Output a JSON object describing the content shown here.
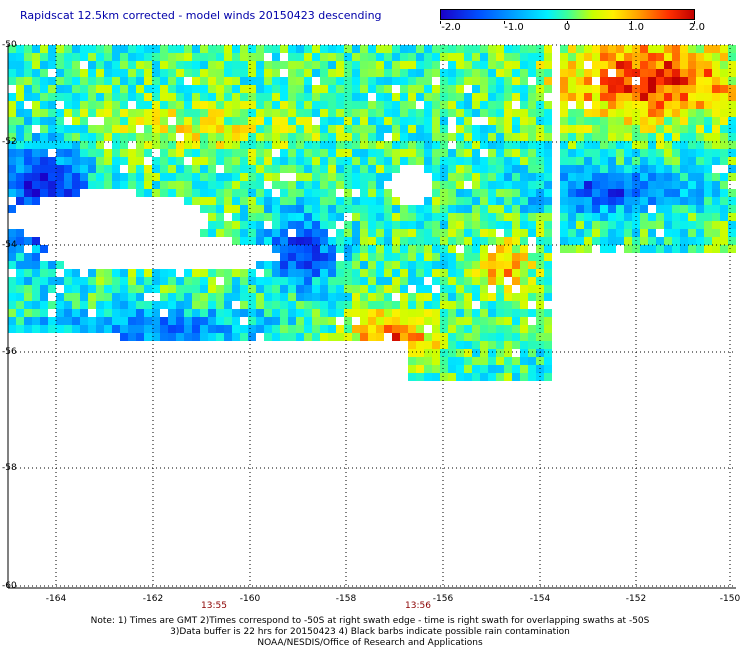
{
  "title": "Rapidscat 12.5km corrected - model winds 20150423 descending",
  "colorbar": {
    "ticks": [
      {
        "value": "-2.0",
        "t": 0.0
      },
      {
        "value": "-1.0",
        "t": 0.25
      },
      {
        "value": "0",
        "t": 0.5
      },
      {
        "value": "1.0",
        "t": 0.75
      },
      {
        "value": "2.0",
        "t": 1.0
      }
    ]
  },
  "map": {
    "latitudes": [
      "-50",
      "-52",
      "-54",
      "-56",
      "-58",
      "-60"
    ],
    "longitudes": [
      "-164",
      "-162",
      "-160",
      "-158",
      "-156",
      "-154",
      "-152",
      "-150"
    ],
    "times": [
      "13:55",
      "13:56"
    ],
    "colors": {
      "land": "#ffffff",
      "grid": "#000000",
      "time_label": "#8b0000",
      "title": "#0000aa"
    }
  },
  "notes": {
    "line1": "Note: 1) Times are GMT 2)Times correspond to -50S at right swath edge - time is right swath for overlapping swaths at -50S",
    "line2": "3)Data buffer is 22 hrs for 20150423 4) Black barbs indicate possible rain contamination",
    "line3": "NOAA/NESDIS/Office of Research and Applications"
  }
}
